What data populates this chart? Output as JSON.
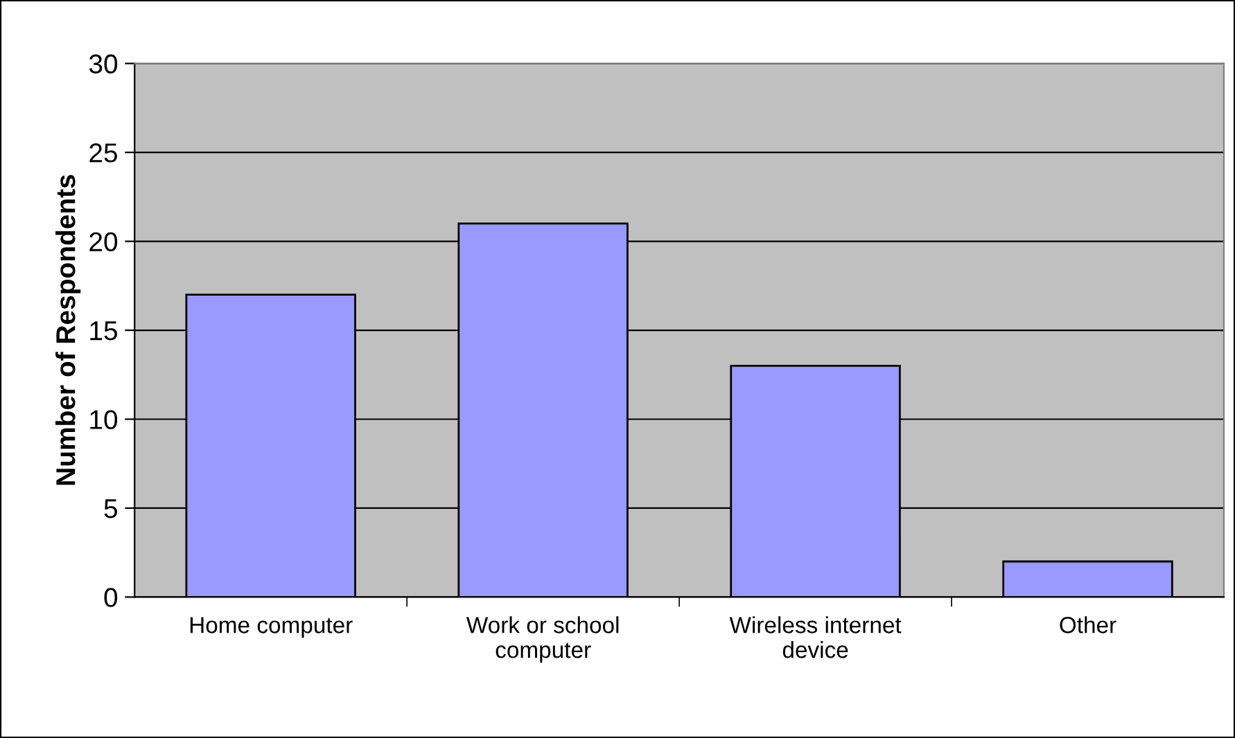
{
  "chart_data": {
    "type": "bar",
    "ylabel": "Number of Respondents",
    "categories": [
      "Home computer",
      "Work or school\ncomputer",
      "Wireless internet\ndevice",
      "Other"
    ],
    "values": [
      17,
      21,
      13,
      2
    ],
    "color": "#9999ff",
    "ylim": [
      0,
      30
    ],
    "yticks": [
      0,
      5,
      10,
      15,
      20,
      25,
      30
    ],
    "grid": "y"
  }
}
